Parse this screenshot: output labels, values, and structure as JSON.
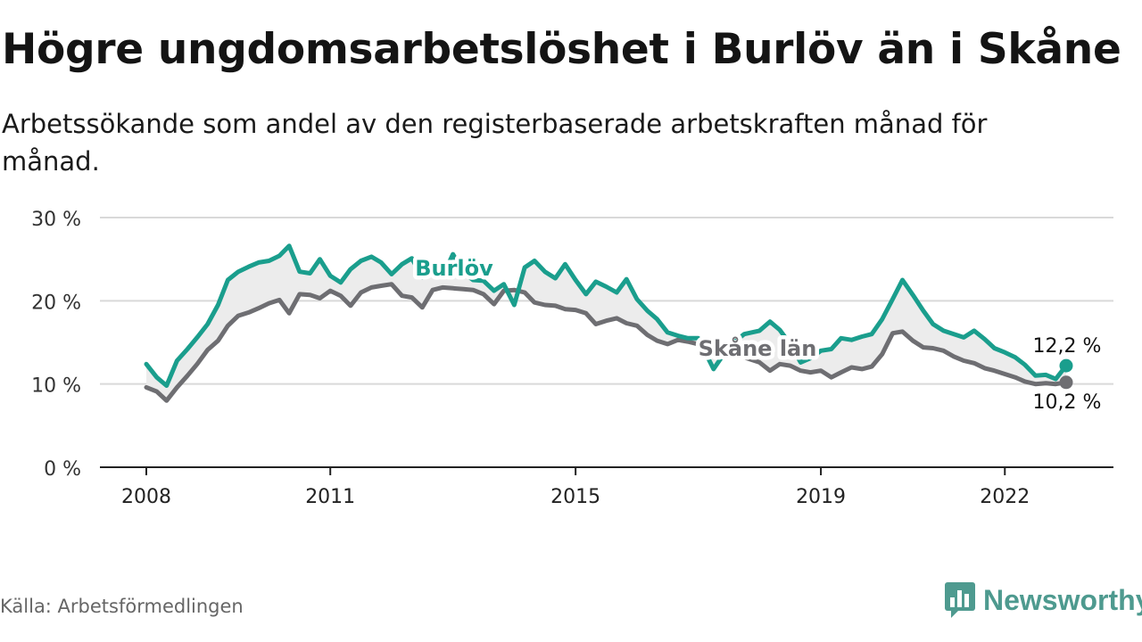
{
  "header": {
    "title": "Högre ungdomsarbetslöshet i Burlöv än i Skåne",
    "subtitle": "Arbetssökande som andel av den registerbaserade arbetskraften månad för månad."
  },
  "footer": {
    "source": "Källa: Arbetsförmedlingen",
    "brand": "Newsworthy"
  },
  "colors": {
    "burlov": "#1a9e8d",
    "skane": "#6e6e72",
    "band": "#ececec",
    "grid": "#d9d9d9",
    "axis": "#222222",
    "brand": "#4e9a8f"
  },
  "chart_data": {
    "type": "line",
    "title": "Högre ungdomsarbetslöshet i Burlöv än i Skåne",
    "xlabel": "",
    "ylabel": "",
    "ylim": [
      0,
      30
    ],
    "yticks": [
      0,
      10,
      20,
      30
    ],
    "ytick_labels": [
      "0 %",
      "10 %",
      "20 %",
      "30 %"
    ],
    "xlim": [
      2008.0,
      2024.2
    ],
    "xticks": [
      2008,
      2011,
      2015,
      2019,
      2022
    ],
    "xtick_labels": [
      "2008",
      "2011",
      "2015",
      "2019",
      "2022"
    ],
    "legend": "inline labels",
    "series": [
      {
        "name": "Burlöv",
        "label": "Burlöv",
        "last_value_label": "12,2 %",
        "x": [
          2008.0,
          2008.17,
          2008.33,
          2008.5,
          2008.67,
          2008.83,
          2009.0,
          2009.17,
          2009.33,
          2009.5,
          2009.67,
          2009.83,
          2010.0,
          2010.17,
          2010.33,
          2010.5,
          2010.67,
          2010.83,
          2011.0,
          2011.17,
          2011.33,
          2011.5,
          2011.67,
          2011.83,
          2012.0,
          2012.17,
          2012.33,
          2012.5,
          2012.67,
          2012.83,
          2013.0,
          2013.17,
          2013.33,
          2013.5,
          2013.67,
          2013.83,
          2014.0,
          2014.17,
          2014.33,
          2014.5,
          2014.67,
          2014.83,
          2015.0,
          2015.17,
          2015.33,
          2015.5,
          2015.67,
          2015.83,
          2016.0,
          2016.17,
          2016.33,
          2016.5,
          2016.67,
          2016.83,
          2017.0,
          2017.25,
          2017.5,
          2017.75,
          2018.0,
          2018.17,
          2018.33,
          2018.5,
          2018.67,
          2018.83,
          2019.0,
          2019.17,
          2019.33,
          2019.5,
          2019.67,
          2019.83,
          2020.0,
          2020.17,
          2020.33,
          2020.5,
          2020.67,
          2020.83,
          2021.0,
          2021.17,
          2021.33,
          2021.5,
          2021.67,
          2021.83,
          2022.0,
          2022.17,
          2022.33,
          2022.5,
          2022.67,
          2022.83,
          2023.0
        ],
        "values": [
          12.4,
          10.8,
          9.8,
          12.8,
          14.2,
          15.6,
          17.2,
          19.5,
          22.5,
          23.5,
          24.1,
          24.6,
          24.8,
          25.4,
          26.6,
          23.5,
          23.3,
          25.0,
          23.0,
          22.2,
          23.8,
          24.8,
          25.3,
          24.6,
          23.2,
          24.4,
          25.1,
          22.8,
          23.4,
          22.9,
          25.6,
          23.4,
          22.5,
          22.4,
          21.2,
          22.0,
          19.5,
          24.0,
          24.8,
          23.5,
          22.7,
          24.4,
          22.5,
          20.8,
          22.3,
          21.7,
          21.0,
          22.6,
          20.2,
          18.8,
          17.8,
          16.2,
          15.8,
          15.5,
          15.5,
          11.8,
          14.5,
          16.0,
          16.4,
          17.5,
          16.5,
          14.8,
          12.6,
          13.1,
          14.0,
          14.2,
          15.5,
          15.3,
          15.7,
          16.0,
          17.8,
          20.2,
          22.5,
          20.7,
          18.8,
          17.2,
          16.4,
          16.0,
          15.6,
          16.4,
          15.4,
          14.3,
          13.8,
          13.2,
          12.3,
          11.0,
          11.1,
          10.6,
          12.2
        ]
      },
      {
        "name": "Skåne län",
        "label": "Skåne län",
        "last_value_label": "10,2 %",
        "x": [
          2008.0,
          2008.17,
          2008.33,
          2008.5,
          2008.67,
          2008.83,
          2009.0,
          2009.17,
          2009.33,
          2009.5,
          2009.67,
          2009.83,
          2010.0,
          2010.17,
          2010.33,
          2010.5,
          2010.67,
          2010.83,
          2011.0,
          2011.17,
          2011.33,
          2011.5,
          2011.67,
          2011.83,
          2012.0,
          2012.17,
          2012.33,
          2012.5,
          2012.67,
          2012.83,
          2013.0,
          2013.17,
          2013.33,
          2013.5,
          2013.67,
          2013.83,
          2014.0,
          2014.17,
          2014.33,
          2014.5,
          2014.67,
          2014.83,
          2015.0,
          2015.17,
          2015.33,
          2015.5,
          2015.67,
          2015.83,
          2016.0,
          2016.17,
          2016.33,
          2016.5,
          2016.67,
          2016.83,
          2017.0,
          2017.25,
          2017.5,
          2017.75,
          2018.0,
          2018.17,
          2018.33,
          2018.5,
          2018.67,
          2018.83,
          2019.0,
          2019.17,
          2019.33,
          2019.5,
          2019.67,
          2019.83,
          2020.0,
          2020.17,
          2020.33,
          2020.5,
          2020.67,
          2020.83,
          2021.0,
          2021.17,
          2021.33,
          2021.5,
          2021.67,
          2021.83,
          2022.0,
          2022.17,
          2022.33,
          2022.5,
          2022.67,
          2022.83,
          2023.0
        ],
        "values": [
          9.6,
          9.1,
          8.0,
          9.6,
          11.0,
          12.4,
          14.1,
          15.2,
          17.0,
          18.2,
          18.6,
          19.1,
          19.7,
          20.1,
          18.5,
          20.8,
          20.7,
          20.3,
          21.2,
          20.6,
          19.4,
          21.0,
          21.6,
          21.8,
          22.0,
          20.6,
          20.4,
          19.2,
          21.3,
          21.6,
          21.5,
          21.4,
          21.3,
          20.8,
          19.6,
          21.2,
          21.3,
          21.0,
          19.8,
          19.5,
          19.4,
          19.0,
          18.9,
          18.5,
          17.2,
          17.6,
          17.9,
          17.3,
          17.0,
          15.9,
          15.2,
          14.8,
          15.3,
          15.1,
          14.8,
          14.6,
          13.8,
          13.2,
          12.6,
          11.6,
          12.4,
          12.2,
          11.6,
          11.4,
          11.6,
          10.8,
          11.4,
          12.0,
          11.8,
          12.1,
          13.6,
          16.1,
          16.3,
          15.2,
          14.4,
          14.3,
          14.0,
          13.3,
          12.8,
          12.5,
          11.9,
          11.6,
          11.2,
          10.8,
          10.3,
          10.0,
          10.1,
          10.0,
          10.2
        ]
      }
    ]
  }
}
